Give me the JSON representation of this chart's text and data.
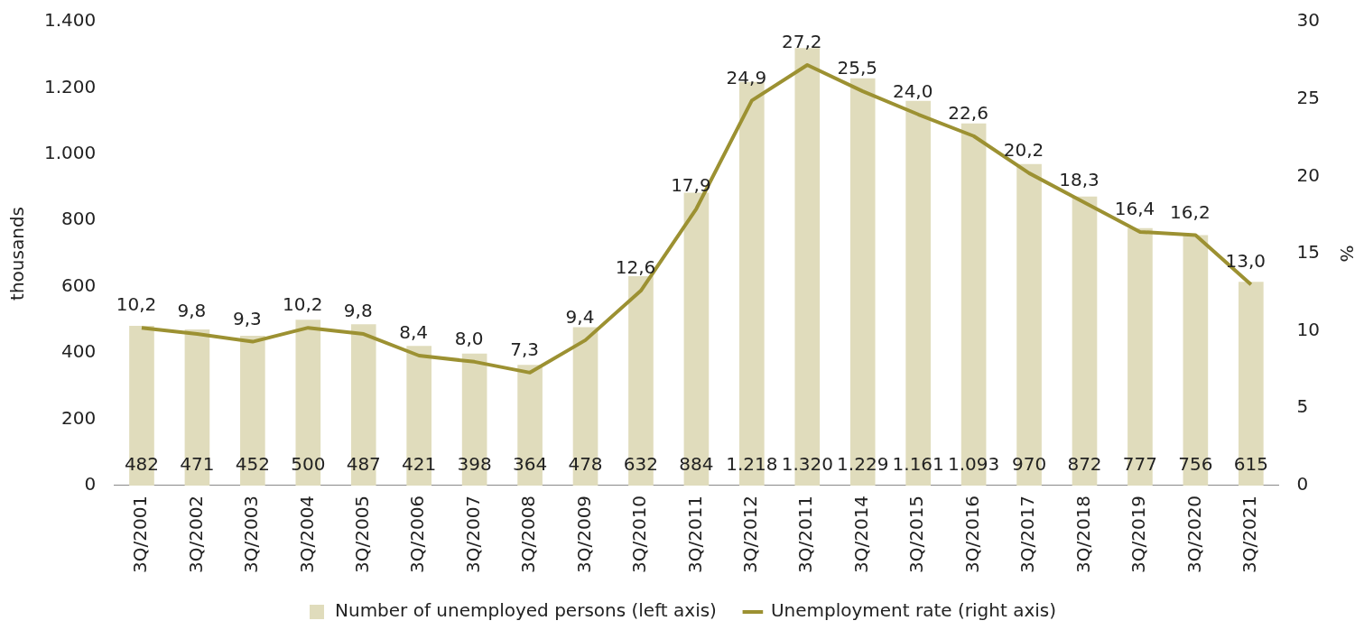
{
  "chart_data": {
    "type": "bar",
    "categories": [
      "3Q/2001",
      "3Q/2002",
      "3Q/2003",
      "3Q/2004",
      "3Q/2005",
      "3Q/2006",
      "3Q/2007",
      "3Q/2008",
      "3Q/2009",
      "3Q/2010",
      "3Q/2011",
      "3Q/2012",
      "3Q/2011",
      "3Q/2014",
      "3Q/2015",
      "3Q/2016",
      "3Q/2017",
      "3Q/2018",
      "3Q/2019",
      "3Q/2020",
      "3Q/2021"
    ],
    "series": [
      {
        "name": "Number of unemployed persons (left axis)",
        "color": "#e0dcbc",
        "values": [
          482,
          471,
          452,
          500,
          487,
          421,
          398,
          364,
          478,
          632,
          884,
          1218,
          1320,
          1229,
          1161,
          1093,
          970,
          872,
          777,
          756,
          615
        ],
        "value_labels": [
          "482",
          "471",
          "452",
          "500",
          "487",
          "421",
          "398",
          "364",
          "478",
          "632",
          "884",
          "1.218",
          "1.320",
          "1.229",
          "1.161",
          "1.093",
          "970",
          "872",
          "777",
          "756",
          "615"
        ]
      },
      {
        "name": "Unemployment rate (right axis)",
        "type": "line",
        "axis": "y2",
        "color": "#9c9132",
        "values": [
          10.2,
          9.8,
          9.3,
          10.2,
          9.8,
          8.4,
          8.0,
          7.3,
          9.4,
          12.6,
          17.9,
          24.9,
          27.2,
          25.5,
          24.0,
          22.6,
          20.2,
          18.3,
          16.4,
          16.2,
          13.0
        ],
        "value_labels": [
          "10,2",
          "9,8",
          "9,3",
          "10,2",
          "9,8",
          "8,4",
          "8,0",
          "7,3",
          "9,4",
          "12,6",
          "17,9",
          "24,9",
          "27,2",
          "25,5",
          "24,0",
          "22,6",
          "20,2",
          "18,3",
          "16,4",
          "16,2",
          "13,0"
        ]
      }
    ],
    "ylabel": "thousands",
    "y2label": "%",
    "ylim": [
      0,
      1400
    ],
    "yticks": [
      0,
      {
        "value": 200,
        "label": "200"
      },
      {
        "value": 400,
        "label": "400"
      },
      {
        "value": 600,
        "label": "600"
      },
      {
        "value": 800,
        "label": "800"
      },
      {
        "value": 1000,
        "label": "1.000"
      },
      {
        "value": 1200,
        "label": "1.200"
      },
      {
        "value": 1400,
        "label": "1.400"
      }
    ],
    "y2lim": [
      0,
      30
    ],
    "y2ticks": [
      0,
      5,
      10,
      15,
      20,
      25,
      30
    ],
    "grid": false,
    "legend": "bottom",
    "marker": "none",
    "line_style": "solid"
  }
}
